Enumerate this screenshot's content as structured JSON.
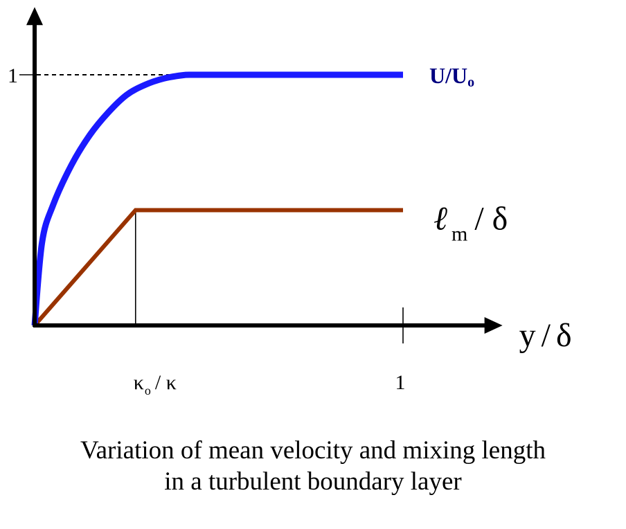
{
  "chart_data": {
    "type": "line",
    "title": "",
    "xlabel": {
      "base": "y",
      "slash": "/",
      "den": "δ"
    },
    "ylabel": "",
    "xlim": [
      0,
      1.27
    ],
    "ylim": [
      0,
      1.27
    ],
    "grid": false,
    "x_ticks": [
      {
        "value": 0.274,
        "label_main": "κ",
        "label_sub": "o",
        "label_tail": "/ κ"
      },
      {
        "value": 1.0,
        "label": "1"
      }
    ],
    "y_ticks": [
      {
        "value": 1.0,
        "label": "1"
      }
    ],
    "colors": {
      "velocity": "#1a1aff",
      "mixing_length": "#993300",
      "axis": "#000000",
      "velocity_label": "#000080"
    },
    "series": [
      {
        "name": "U/Uo",
        "label_main": "U/U",
        "label_sub": "o",
        "color": "#1a1aff",
        "shape": "rising curve that reaches 1 and stays flat",
        "x": [
          0,
          0.02,
          0.05,
          0.1,
          0.15,
          0.2,
          0.25,
          0.3,
          0.35,
          0.4,
          0.43,
          0.5,
          0.6,
          0.7,
          0.8,
          0.9,
          1.0
        ],
        "y": [
          0,
          0.33,
          0.48,
          0.64,
          0.76,
          0.85,
          0.92,
          0.96,
          0.985,
          0.998,
          1.0,
          1.0,
          1.0,
          1.0,
          1.0,
          1.0,
          1.0
        ]
      },
      {
        "name": "ℓm/δ",
        "label_main": "ℓ",
        "label_sub": "m",
        "label_tail": "/ δ",
        "color": "#993300",
        "shape": "linear rise to the knee at κo/κ then constant",
        "x": [
          0,
          0.274,
          1.0
        ],
        "y": [
          0,
          0.46,
          0.46
        ]
      }
    ],
    "annotations": {
      "y_reference_line": {
        "y": 1.0,
        "from_x": 0,
        "to_x": 0.43,
        "style": "dashed"
      },
      "knee_drop_line": {
        "x": 0.274,
        "from_y": 0,
        "to_y": 0.46
      }
    }
  },
  "caption": {
    "line1": "Variation of mean velocity and mixing length",
    "line2": "in a turbulent boundary layer"
  }
}
